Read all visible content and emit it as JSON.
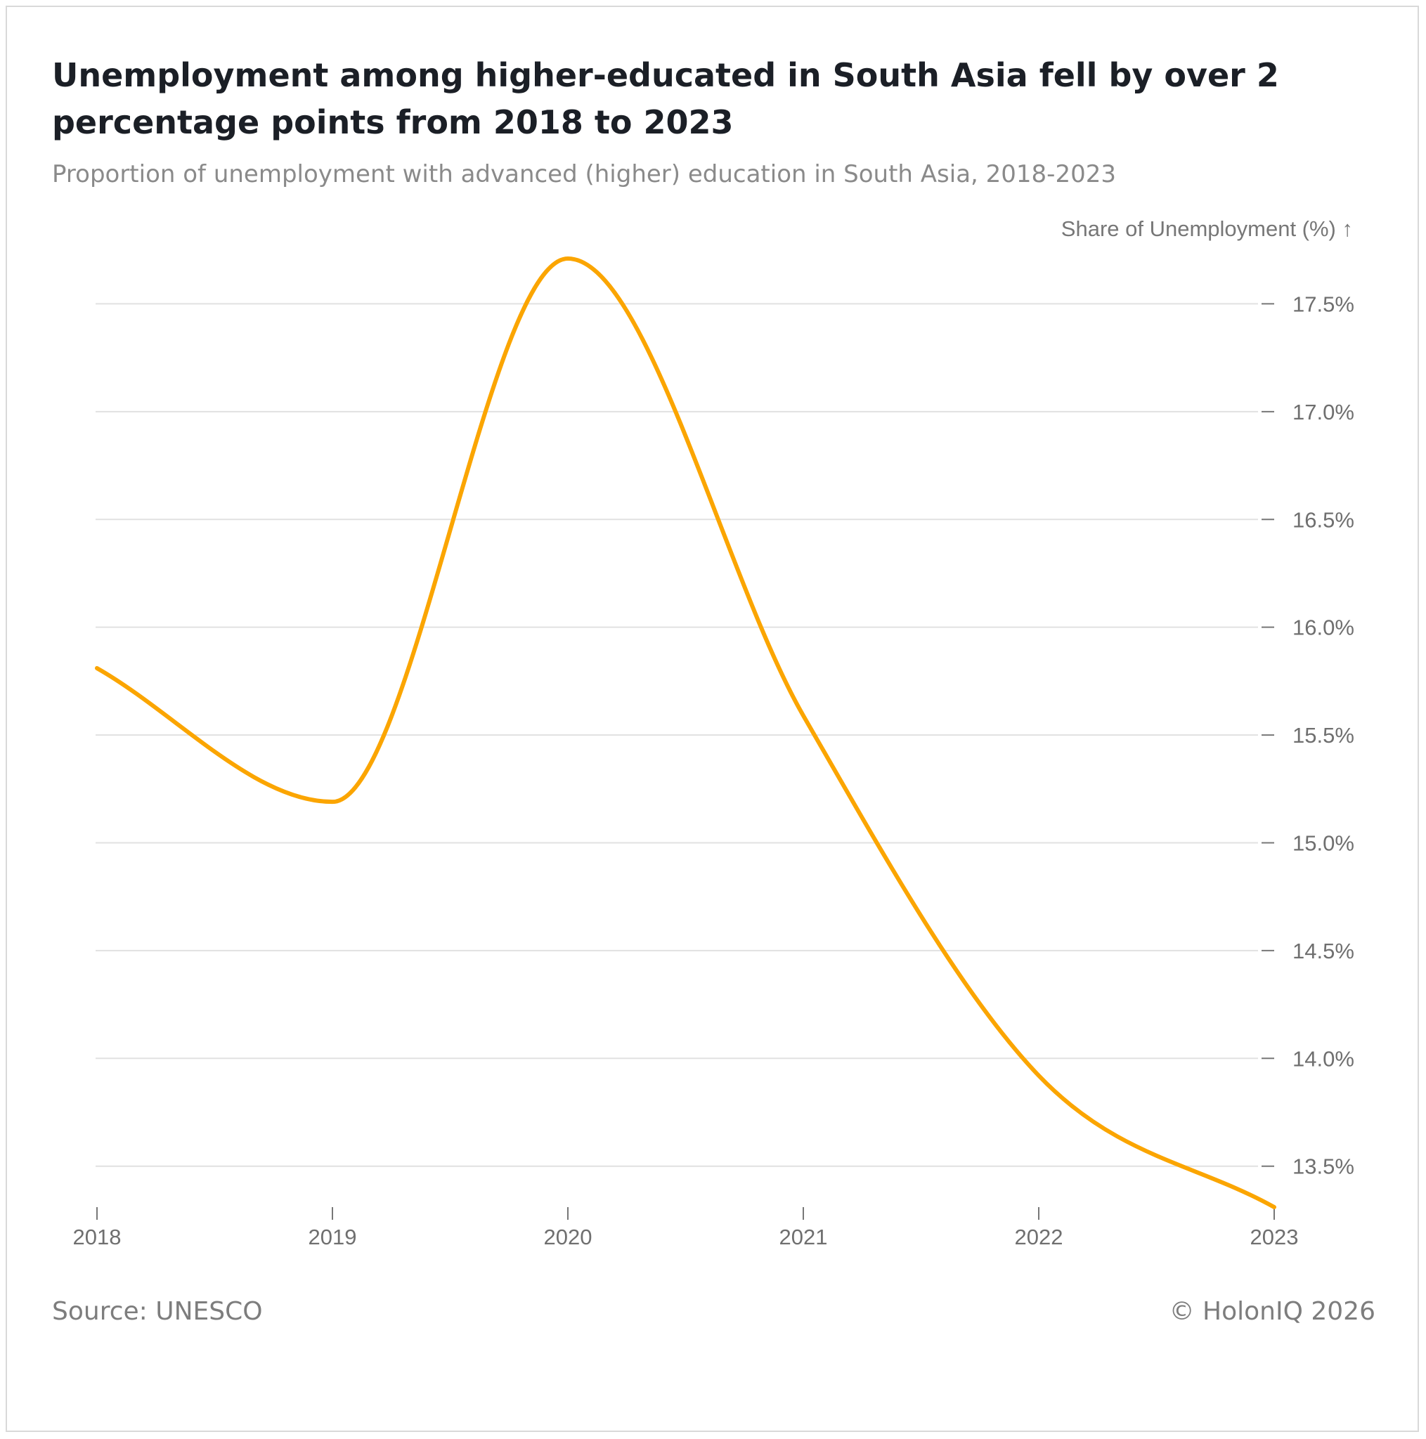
{
  "header": {
    "title": "Unemployment among higher-educated in South Asia fell by over 2 percentage points from 2018 to 2023",
    "subtitle": "Proportion of unemployment with advanced (higher) education in South Asia, 2018-2023"
  },
  "footer": {
    "source": "Source: UNESCO",
    "copyright": "© HolonIQ 2026"
  },
  "colors": {
    "line": "#fba500",
    "grid": "#e1e1e1",
    "tick_text": "#6f6f6f"
  },
  "chart_data": {
    "type": "line",
    "title": "Unemployment among higher-educated in South Asia fell by over 2 percentage points from 2018 to 2023",
    "subtitle": "Proportion of unemployment with advanced (higher) education in South Asia, 2018-2023",
    "xlabel": "",
    "ylabel": "Share of Unemployment (%) ↑",
    "x": [
      "2018",
      "2019",
      "2020",
      "2021",
      "2022",
      "2023"
    ],
    "series": [
      {
        "values": [
          15.81,
          15.19,
          17.71,
          15.59,
          13.92,
          13.31
        ]
      }
    ],
    "ylim": [
      13.31,
      17.71
    ],
    "yticks": [
      13.5,
      14.0,
      14.5,
      15.0,
      15.5,
      16.0,
      16.5,
      17.0,
      17.5
    ],
    "ytick_labels": [
      "13.5%",
      "14.0%",
      "14.5%",
      "15.0%",
      "15.5%",
      "16.0%",
      "16.5%",
      "17.0%",
      "17.5%"
    ],
    "y_axis_position": "right",
    "grid": true,
    "legend": "none",
    "curve": "smooth"
  }
}
